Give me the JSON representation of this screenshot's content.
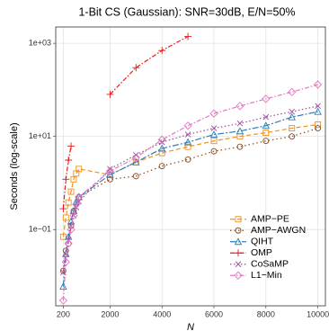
{
  "chart_data": {
    "type": "line",
    "title": "1-Bit CS (Gaussian): SNR=30dB, E/N=50%",
    "x_label": "N",
    "y_label": "Seconds (log-scale)",
    "x": [
      200,
      300,
      400,
      500,
      600,
      700,
      800,
      2000,
      3000,
      4000,
      5000,
      6000,
      7000,
      8000,
      9000,
      10000
    ],
    "series": [
      {
        "name": "AMP−PE",
        "color": "#f0901e",
        "marker": "square",
        "values": [
          0.07,
          0.18,
          0.38,
          0.65,
          1.2,
          1.6,
          2,
          1.5,
          2.8,
          4.4,
          6,
          8,
          10,
          12,
          15,
          18
        ]
      },
      {
        "name": "AMP−AWGN",
        "color": "#8b4a1c",
        "marker": "circle",
        "values": [
          0.013,
          0.035,
          0.05,
          0.12,
          0.25,
          0.35,
          0.5,
          1.2,
          1.4,
          2.3,
          3.2,
          4.8,
          6,
          8,
          10,
          15
        ]
      },
      {
        "name": "QIHT",
        "color": "#2f7fb8",
        "marker": "triangle",
        "values": [
          0.006,
          0.03,
          0.07,
          0.15,
          0.25,
          0.4,
          0.5,
          1.5,
          2.8,
          5.5,
          7.5,
          11,
          13,
          17,
          26,
          34
        ]
      },
      {
        "name": "OMP",
        "color": "#e31a1c",
        "marker": "plus",
        "values": [
          0.28,
          1.2,
          3.1,
          6.2,
          null,
          null,
          null,
          80,
          300,
          700,
          1400,
          null,
          null,
          null,
          null,
          null
        ]
      },
      {
        "name": "CoSaMP",
        "color": "#9b4ea0",
        "marker": "cross",
        "values": [
          0.012,
          0.03,
          0.06,
          0.12,
          0.2,
          0.3,
          0.4,
          2,
          4,
          7.5,
          11,
          15,
          19,
          26,
          34,
          45
        ]
      },
      {
        "name": "L1−Min",
        "color": "#e377c2",
        "marker": "diamond",
        "values": [
          0.003,
          0.02,
          0.05,
          0.1,
          0.2,
          0.35,
          0.5,
          1.8,
          3.5,
          8.5,
          17,
          31,
          45,
          64,
          90,
          130
        ]
      }
    ],
    "xlim": [
      -90,
      10290
    ],
    "xticks": [
      200,
      2000,
      4000,
      6000,
      8000,
      10000
    ],
    "ylim": [
      0.0023,
      2240
    ],
    "log_y": true,
    "yticks": [
      {
        "value": 0.1,
        "label": "1e−01"
      },
      {
        "value": 10,
        "label": "1e+01"
      },
      {
        "value": 1000,
        "label": "1e+03"
      }
    ],
    "grid": true,
    "legend": "lower right"
  }
}
